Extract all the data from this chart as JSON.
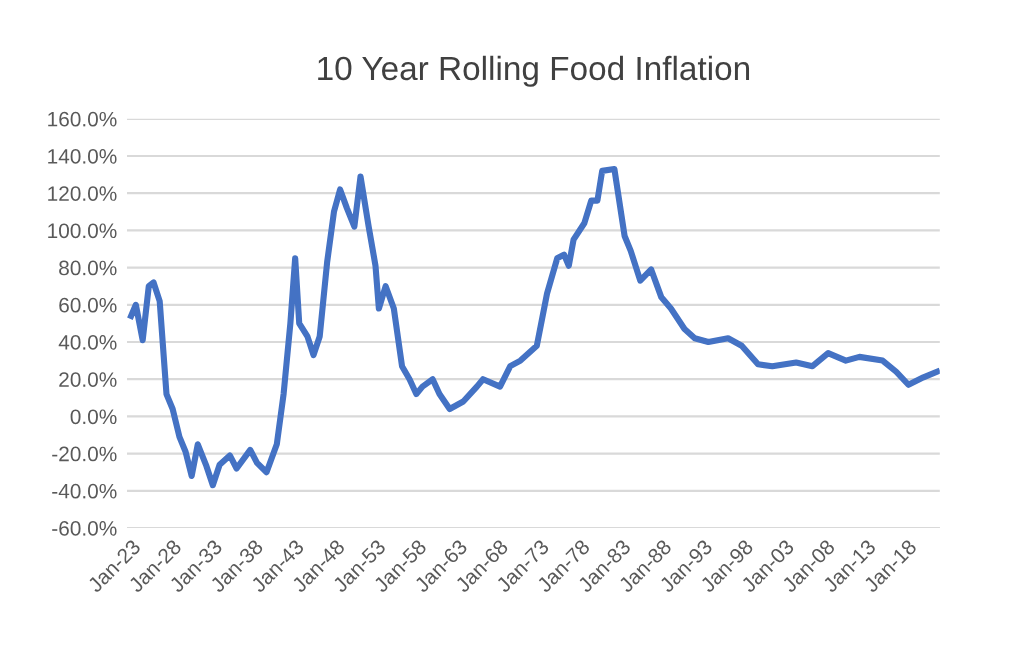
{
  "chart_data": {
    "type": "line",
    "title": "10 Year Rolling Food Inflation",
    "x": [
      "1923-01",
      "1923-08",
      "1924-06",
      "1925-03",
      "1925-10",
      "1926-07",
      "1927-05",
      "1928-02",
      "1928-12",
      "1929-09",
      "1930-06",
      "1931-03",
      "1932-03",
      "1933-01",
      "1933-11",
      "1935-02",
      "1935-12",
      "1937-08",
      "1938-06",
      "1939-08",
      "1940-11",
      "1941-09",
      "1942-07",
      "1943-02",
      "1943-08",
      "1944-08",
      "1945-05",
      "1946-02",
      "1947-01",
      "1947-11",
      "1948-08",
      "1949-06",
      "1950-05",
      "1951-02",
      "1952-02",
      "1952-12",
      "1953-05",
      "1954-03",
      "1955-03",
      "1956-03",
      "1957-02",
      "1957-12",
      "1958-09",
      "1959-12",
      "1960-10",
      "1962-01",
      "1963-09",
      "1965-05",
      "1966-02",
      "1968-03",
      "1969-06",
      "1970-09",
      "1972-09",
      "1973-12",
      "1975-03",
      "1976-01",
      "1976-08",
      "1977-03",
      "1978-07",
      "1979-05",
      "1980-02",
      "1980-09",
      "1982-03",
      "1983-06",
      "1984-03",
      "1985-05",
      "1986-09",
      "1987-12",
      "1989-02",
      "1990-10",
      "1992-01",
      "1993-09",
      "1996-02",
      "1997-10",
      "1999-10",
      "2001-07",
      "2004-06",
      "2006-06",
      "2008-05",
      "2010-07",
      "2012-03",
      "2015-01",
      "2016-09",
      "2018-03",
      "2020-01",
      "2021-09"
    ],
    "series": [
      {
        "color": "#4472c4",
        "values": [
          54,
          60,
          41,
          70,
          72,
          62,
          12,
          4,
          -11,
          -19,
          -32,
          -15,
          -26,
          -37,
          -26,
          -21,
          -28,
          -18,
          -25,
          -30,
          -15,
          12,
          50,
          85,
          50,
          43,
          33,
          43,
          83,
          110,
          122,
          112,
          102,
          129,
          102,
          81,
          58,
          70,
          58,
          27,
          20,
          12,
          16,
          20,
          12,
          4,
          8,
          16,
          20,
          16,
          27,
          30,
          38,
          66,
          85,
          87,
          81,
          95,
          104,
          116,
          116,
          132,
          133,
          97,
          89,
          73,
          79,
          64,
          58,
          47,
          42,
          40,
          42,
          38,
          28,
          27,
          29,
          27,
          34,
          30,
          32,
          30,
          24,
          17,
          21,
          24
        ]
      }
    ],
    "xlim": [
      "1922-07",
      "2022-01"
    ],
    "xticks": [
      {
        "value": "1923-01",
        "label": "Jan-23"
      },
      {
        "value": "1928-01",
        "label": "Jan-28"
      },
      {
        "value": "1933-01",
        "label": "Jan-33"
      },
      {
        "value": "1938-01",
        "label": "Jan-38"
      },
      {
        "value": "1943-01",
        "label": "Jan-43"
      },
      {
        "value": "1948-01",
        "label": "Jan-48"
      },
      {
        "value": "1953-01",
        "label": "Jan-53"
      },
      {
        "value": "1958-01",
        "label": "Jan-58"
      },
      {
        "value": "1963-01",
        "label": "Jan-63"
      },
      {
        "value": "1968-01",
        "label": "Jan-68"
      },
      {
        "value": "1973-01",
        "label": "Jan-73"
      },
      {
        "value": "1978-01",
        "label": "Jan-78"
      },
      {
        "value": "1983-01",
        "label": "Jan-83"
      },
      {
        "value": "1988-01",
        "label": "Jan-88"
      },
      {
        "value": "1993-01",
        "label": "Jan-93"
      },
      {
        "value": "1998-01",
        "label": "Jan-98"
      },
      {
        "value": "2003-01",
        "label": "Jan-03"
      },
      {
        "value": "2008-01",
        "label": "Jan-08"
      },
      {
        "value": "2013-01",
        "label": "Jan-13"
      },
      {
        "value": "2018-01",
        "label": "Jan-18"
      }
    ],
    "ylim": [
      -60,
      160
    ],
    "yticks": [
      {
        "value": -60,
        "label": "-60.0%"
      },
      {
        "value": -40,
        "label": "-40.0%"
      },
      {
        "value": -20,
        "label": "-20.0%"
      },
      {
        "value": 0,
        "label": "0.0%"
      },
      {
        "value": 20,
        "label": "20.0%"
      },
      {
        "value": 40,
        "label": "40.0%"
      },
      {
        "value": 60,
        "label": "60.0%"
      },
      {
        "value": 80,
        "label": "80.0%"
      },
      {
        "value": 100,
        "label": "100.0%"
      },
      {
        "value": 120,
        "label": "120.0%"
      },
      {
        "value": 140,
        "label": "140.0%"
      },
      {
        "value": 160,
        "label": "160.0%"
      }
    ],
    "grid": "y",
    "line_style": "solid"
  }
}
